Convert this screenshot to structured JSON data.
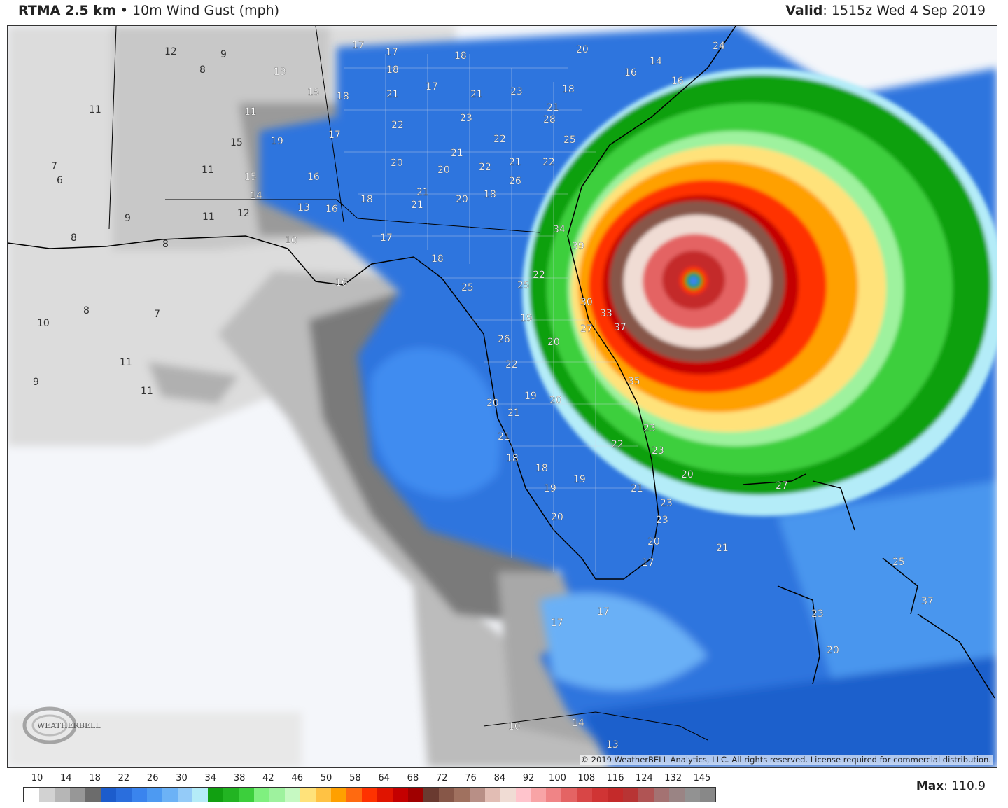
{
  "header": {
    "model": "RTMA 2.5 km",
    "separator": "•",
    "field": "10m Wind Gust (mph)",
    "valid_label": "Valid",
    "valid_value": "1515z Wed 4 Sep 2019"
  },
  "map": {
    "copyright": "© 2019 WeatherBELL Analytics, LLC. All rights reserved. License required for commercial distribution.",
    "logo_text": "WeatherBELL",
    "station_values": [
      "12",
      "9",
      "8",
      "13",
      "15",
      "11",
      "11",
      "15",
      "19",
      "17",
      "18",
      "7",
      "6",
      "11",
      "15",
      "16",
      "14",
      "13",
      "16",
      "12",
      "11",
      "9",
      "8",
      "8",
      "10",
      "16",
      "8",
      "7",
      "10",
      "11",
      "9",
      "11",
      "17",
      "17",
      "18",
      "18",
      "21",
      "17",
      "21",
      "23",
      "18",
      "21",
      "22",
      "23",
      "22",
      "21",
      "20",
      "20",
      "22",
      "21",
      "21",
      "21",
      "20",
      "18",
      "17",
      "18",
      "18",
      "25",
      "28",
      "25",
      "22",
      "26",
      "25",
      "22",
      "19",
      "26",
      "20",
      "22",
      "19",
      "20",
      "20",
      "21",
      "21",
      "18",
      "18",
      "19",
      "19",
      "20",
      "23",
      "23",
      "22",
      "20",
      "21",
      "20",
      "17",
      "17",
      "17",
      "23",
      "23",
      "20",
      "21",
      "27",
      "25",
      "10",
      "14",
      "13",
      "24",
      "14",
      "16",
      "16",
      "20",
      "34",
      "39",
      "30",
      "33",
      "37",
      "27",
      "35",
      "37",
      "23"
    ],
    "colors": {
      "land_outline": "#000000",
      "county_lines": "#cfd8e6"
    }
  },
  "legend": {
    "ticks": [
      "10",
      "14",
      "18",
      "22",
      "26",
      "30",
      "34",
      "38",
      "42",
      "46",
      "50",
      "58",
      "64",
      "68",
      "72",
      "76",
      "84",
      "92",
      "100",
      "108",
      "116",
      "124",
      "132",
      "145"
    ],
    "colors": [
      "#ffffff",
      "#d2d2d2",
      "#b6b6b6",
      "#979797",
      "#6c6c6c",
      "#1c5ccc",
      "#2a6edd",
      "#3a84ee",
      "#4d9af2",
      "#6cb2f6",
      "#94cbf8",
      "#b4ecf8",
      "#11a011",
      "#22b422",
      "#3ccf3c",
      "#7ff07f",
      "#9ef29e",
      "#c6f9c2",
      "#ffe27a",
      "#ffc244",
      "#ffa000",
      "#ff6a10",
      "#ff3200",
      "#e01400",
      "#c40000",
      "#a00000",
      "#6a3a30",
      "#875748",
      "#a0715f",
      "#b88f86",
      "#e2bdb4",
      "#f0dcd4",
      "#ffc4cc",
      "#f8a4a6",
      "#f08486",
      "#e46464",
      "#d84646",
      "#d03434",
      "#c42a2a",
      "#b83434",
      "#b05454",
      "#a47272",
      "#9a8484",
      "#929292",
      "#888888"
    ],
    "max_label": "Max",
    "max_value": "110.9"
  }
}
